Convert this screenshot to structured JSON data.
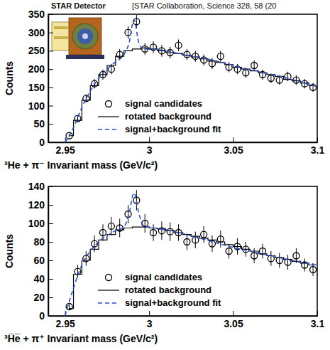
{
  "header": {
    "image_label": "STAR Detector",
    "citation": "[STAR Collaboration, Science 328, 58 (20"
  },
  "chart_data": [
    {
      "type": "scatter",
      "x_label": "³He + π⁻ Invariant mass (GeV/c²)",
      "y_label": "Counts",
      "xlim": [
        2.94,
        3.1
      ],
      "ylim": [
        0,
        350
      ],
      "xticks": [
        2.95,
        3,
        3.05,
        3.1
      ],
      "yticks": [
        0,
        50,
        100,
        150,
        200,
        250,
        300,
        350
      ],
      "legend": "lower left",
      "series": [
        {
          "name": "signal candidates",
          "type": "scatter",
          "marker": "circle",
          "color": "#000000",
          "x": [
            2.9525,
            2.9575,
            2.9625,
            2.9675,
            2.9725,
            2.9775,
            2.9825,
            2.9875,
            2.9925,
            2.9975,
            3.0025,
            3.0075,
            3.0125,
            3.0175,
            3.0225,
            3.0275,
            3.0325,
            3.0375,
            3.0425,
            3.0475,
            3.0525,
            3.0575,
            3.0625,
            3.0675,
            3.0725,
            3.0775,
            3.0825,
            3.0875,
            3.0925,
            3.0975
          ],
          "values": [
            18,
            65,
            120,
            160,
            185,
            200,
            240,
            300,
            330,
            255,
            260,
            250,
            245,
            265,
            240,
            235,
            225,
            215,
            235,
            205,
            200,
            190,
            210,
            185,
            175,
            170,
            180,
            170,
            160,
            150
          ],
          "errors": [
            4,
            8,
            11,
            13,
            14,
            14,
            15,
            17,
            18,
            16,
            16,
            16,
            16,
            16,
            15,
            15,
            15,
            15,
            15,
            14,
            14,
            14,
            14,
            14,
            13,
            13,
            13,
            13,
            13,
            12
          ]
        },
        {
          "name": "rotated background",
          "type": "line",
          "line_style": "step",
          "color": "#000000",
          "x": [
            2.9525,
            2.9575,
            2.9625,
            2.9675,
            2.9725,
            2.9775,
            2.9825,
            2.9875,
            2.9925,
            2.9975,
            3.0025,
            3.0075,
            3.0125,
            3.0175,
            3.0225,
            3.0275,
            3.0325,
            3.0375,
            3.0425,
            3.0475,
            3.0525,
            3.0575,
            3.0625,
            3.0675,
            3.0725,
            3.0775,
            3.0825,
            3.0875,
            3.0925,
            3.0975
          ],
          "values": [
            18,
            60,
            115,
            155,
            185,
            210,
            235,
            250,
            255,
            258,
            255,
            250,
            245,
            243,
            238,
            233,
            228,
            222,
            218,
            212,
            205,
            200,
            195,
            190,
            185,
            180,
            172,
            168,
            162,
            155
          ]
        },
        {
          "name": "signal+background fit",
          "type": "line",
          "line_style": "dashed",
          "color": "#2b4fd6",
          "x": [
            2.95,
            2.955,
            2.96,
            2.965,
            2.97,
            2.975,
            2.98,
            2.985,
            2.988,
            2.991,
            2.994,
            2.997,
            3.0,
            3.01,
            3.02,
            3.03,
            3.04,
            3.05,
            3.06,
            3.07,
            3.08,
            3.09,
            3.1
          ],
          "values": [
            0,
            40,
            95,
            140,
            175,
            200,
            220,
            240,
            270,
            335,
            270,
            255,
            255,
            250,
            240,
            232,
            222,
            210,
            198,
            188,
            178,
            165,
            152
          ]
        }
      ]
    },
    {
      "type": "scatter",
      "x_label": "³H̅e̅ + π⁺ Invariant mass (GeV/c²)",
      "y_label": "Counts",
      "xlim": [
        2.94,
        3.1
      ],
      "ylim": [
        0,
        140
      ],
      "xticks": [
        2.95,
        3,
        3.05,
        3.1
      ],
      "yticks": [
        0,
        20,
        40,
        60,
        80,
        100,
        120,
        140
      ],
      "legend": "lower left",
      "series": [
        {
          "name": "signal candidates",
          "type": "scatter",
          "marker": "circle",
          "color": "#000000",
          "x": [
            2.9525,
            2.9575,
            2.9625,
            2.9675,
            2.9725,
            2.9775,
            2.9825,
            2.9875,
            2.9925,
            2.9975,
            3.0025,
            3.0075,
            3.0125,
            3.0175,
            3.0225,
            3.0275,
            3.0325,
            3.0375,
            3.0425,
            3.0475,
            3.0525,
            3.0575,
            3.0625,
            3.0675,
            3.0725,
            3.0775,
            3.0825,
            3.0875,
            3.0925,
            3.0975
          ],
          "values": [
            10,
            48,
            62,
            78,
            90,
            97,
            95,
            110,
            125,
            100,
            90,
            92,
            91,
            90,
            80,
            82,
            88,
            78,
            83,
            70,
            75,
            72,
            65,
            70,
            62,
            60,
            58,
            65,
            55,
            50
          ],
          "errors": [
            3,
            7,
            8,
            9,
            9,
            10,
            10,
            10,
            11,
            10,
            9,
            10,
            10,
            9,
            9,
            9,
            9,
            9,
            9,
            8,
            9,
            8,
            8,
            8,
            8,
            8,
            8,
            8,
            7,
            7
          ]
        },
        {
          "name": "rotated background",
          "type": "line",
          "line_style": "step",
          "color": "#000000",
          "x": [
            2.9525,
            2.9575,
            2.9625,
            2.9675,
            2.9725,
            2.9775,
            2.9825,
            2.9875,
            2.9925,
            2.9975,
            3.0025,
            3.0075,
            3.0125,
            3.0175,
            3.0225,
            3.0275,
            3.0325,
            3.0375,
            3.0425,
            3.0475,
            3.0525,
            3.0575,
            3.0625,
            3.0675,
            3.0725,
            3.0775,
            3.0825,
            3.0875,
            3.0925,
            3.0975
          ],
          "values": [
            8,
            45,
            60,
            72,
            82,
            88,
            93,
            95,
            96,
            96,
            95,
            94,
            92,
            90,
            88,
            86,
            84,
            82,
            80,
            77,
            75,
            72,
            70,
            67,
            65,
            63,
            61,
            59,
            57,
            55
          ]
        },
        {
          "name": "signal+background fit",
          "type": "line",
          "line_style": "dashed",
          "color": "#2b4fd6",
          "x": [
            2.95,
            2.955,
            2.96,
            2.965,
            2.97,
            2.975,
            2.98,
            2.985,
            2.988,
            2.991,
            2.994,
            2.997,
            3.0,
            3.01,
            3.02,
            3.03,
            3.04,
            3.05,
            3.06,
            3.07,
            3.08,
            3.09,
            3.1
          ],
          "values": [
            0,
            30,
            55,
            70,
            80,
            87,
            92,
            96,
            110,
            133,
            110,
            97,
            96,
            93,
            89,
            84,
            79,
            74,
            70,
            66,
            62,
            58,
            55
          ]
        }
      ]
    }
  ]
}
